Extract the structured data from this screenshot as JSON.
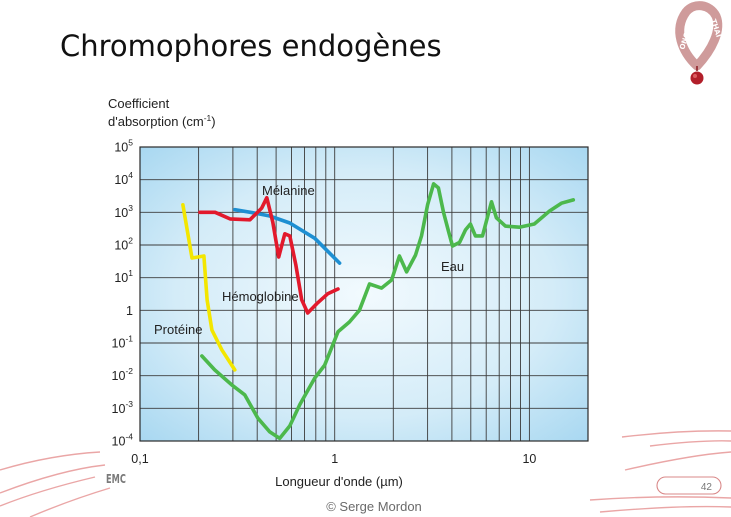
{
  "slide": {
    "title": "Chromophores endogènes",
    "logo_text_left": "ONCO",
    "logo_text_right": "THAI",
    "footer_logo_text": "EMC",
    "copyright": "© Serge Mordon",
    "page_number": "42"
  },
  "chart_data": {
    "type": "line",
    "x_scale": "log",
    "y_scale": "log",
    "xlim": [
      0.1,
      20
    ],
    "ylim": [
      0.0001,
      100000
    ],
    "grid": true,
    "xlabel": "Longueur d'onde (µm)",
    "ylabel": {
      "line1": "Coefficient",
      "line2": "d'absorption (cm",
      "line2_sup": "-1",
      "line2_end": ")"
    },
    "x_ticks": [
      {
        "value": 0.1,
        "label": "0,1"
      },
      {
        "value": 1,
        "label": "1"
      },
      {
        "value": 10,
        "label": "10"
      }
    ],
    "y_ticks": [
      {
        "value": 100000,
        "base": "10",
        "exp": "5"
      },
      {
        "value": 10000,
        "base": "10",
        "exp": "4"
      },
      {
        "value": 1000,
        "base": "10",
        "exp": "3"
      },
      {
        "value": 100,
        "base": "10",
        "exp": "2"
      },
      {
        "value": 10,
        "base": "10",
        "exp": "1"
      },
      {
        "value": 1,
        "base": "1",
        "exp": ""
      },
      {
        "value": 0.1,
        "base": "10",
        "exp": "-1"
      },
      {
        "value": 0.01,
        "base": "10",
        "exp": "-2"
      },
      {
        "value": 0.001,
        "base": "10",
        "exp": "-3"
      },
      {
        "value": 0.0001,
        "base": "10",
        "exp": "-4"
      }
    ],
    "series": [
      {
        "name": "Protéine",
        "color": "#f3e600",
        "points": [
          [
            0.166,
            1700
          ],
          [
            0.185,
            40
          ],
          [
            0.213,
            46
          ],
          [
            0.221,
            2.1
          ],
          [
            0.234,
            0.25
          ],
          [
            0.263,
            0.062
          ],
          [
            0.307,
            0.015
          ]
        ]
      },
      {
        "name": "Mélanine",
        "color": "#1e8fd2",
        "points": [
          [
            0.307,
            1200
          ],
          [
            0.39,
            950
          ],
          [
            0.464,
            770
          ],
          [
            0.588,
            470
          ],
          [
            0.79,
            160
          ],
          [
            1.06,
            28
          ]
        ]
      },
      {
        "name": "Hémoglobine",
        "color": "#e2192c",
        "points": [
          [
            0.203,
            1000
          ],
          [
            0.243,
            1000
          ],
          [
            0.29,
            630
          ],
          [
            0.367,
            590
          ],
          [
            0.422,
            1350
          ],
          [
            0.448,
            2800
          ],
          [
            0.481,
            500
          ],
          [
            0.516,
            43
          ],
          [
            0.554,
            220
          ],
          [
            0.588,
            190
          ],
          [
            0.631,
            25
          ],
          [
            0.677,
            2.1
          ],
          [
            0.727,
            0.83
          ],
          [
            0.818,
            1.7
          ],
          [
            0.921,
            3.2
          ],
          [
            1.04,
            4.5
          ]
        ]
      },
      {
        "name": "Eau",
        "color": "#4cb84c",
        "points": [
          [
            0.208,
            0.04
          ],
          [
            0.242,
            0.015
          ],
          [
            0.296,
            0.0052
          ],
          [
            0.345,
            0.0026
          ],
          [
            0.403,
            0.0005
          ],
          [
            0.464,
            0.00019
          ],
          [
            0.522,
            0.00012
          ],
          [
            0.588,
            0.00029
          ],
          [
            0.662,
            0.0013
          ],
          [
            0.79,
            0.0085
          ],
          [
            0.889,
            0.021
          ],
          [
            1.04,
            0.22
          ],
          [
            1.19,
            0.44
          ],
          [
            1.34,
            1.0
          ],
          [
            1.51,
            6.4
          ],
          [
            1.74,
            4.8
          ],
          [
            1.96,
            8.5
          ],
          [
            2.15,
            46
          ],
          [
            2.34,
            15
          ],
          [
            2.6,
            49
          ],
          [
            2.79,
            190
          ],
          [
            3.0,
            1700
          ],
          [
            3.22,
            7400
          ],
          [
            3.41,
            5600
          ],
          [
            3.62,
            1000
          ],
          [
            3.85,
            250
          ],
          [
            4.03,
            93
          ],
          [
            4.38,
            120
          ],
          [
            4.7,
            290
          ],
          [
            4.98,
            440
          ],
          [
            5.28,
            190
          ],
          [
            5.74,
            190
          ],
          [
            6.09,
            720
          ],
          [
            6.39,
            2100
          ],
          [
            6.77,
            680
          ],
          [
            7.53,
            380
          ],
          [
            8.88,
            350
          ],
          [
            10.6,
            440
          ],
          [
            12.7,
            1100
          ],
          [
            14.6,
            1900
          ],
          [
            16.8,
            2400
          ]
        ]
      }
    ]
  }
}
